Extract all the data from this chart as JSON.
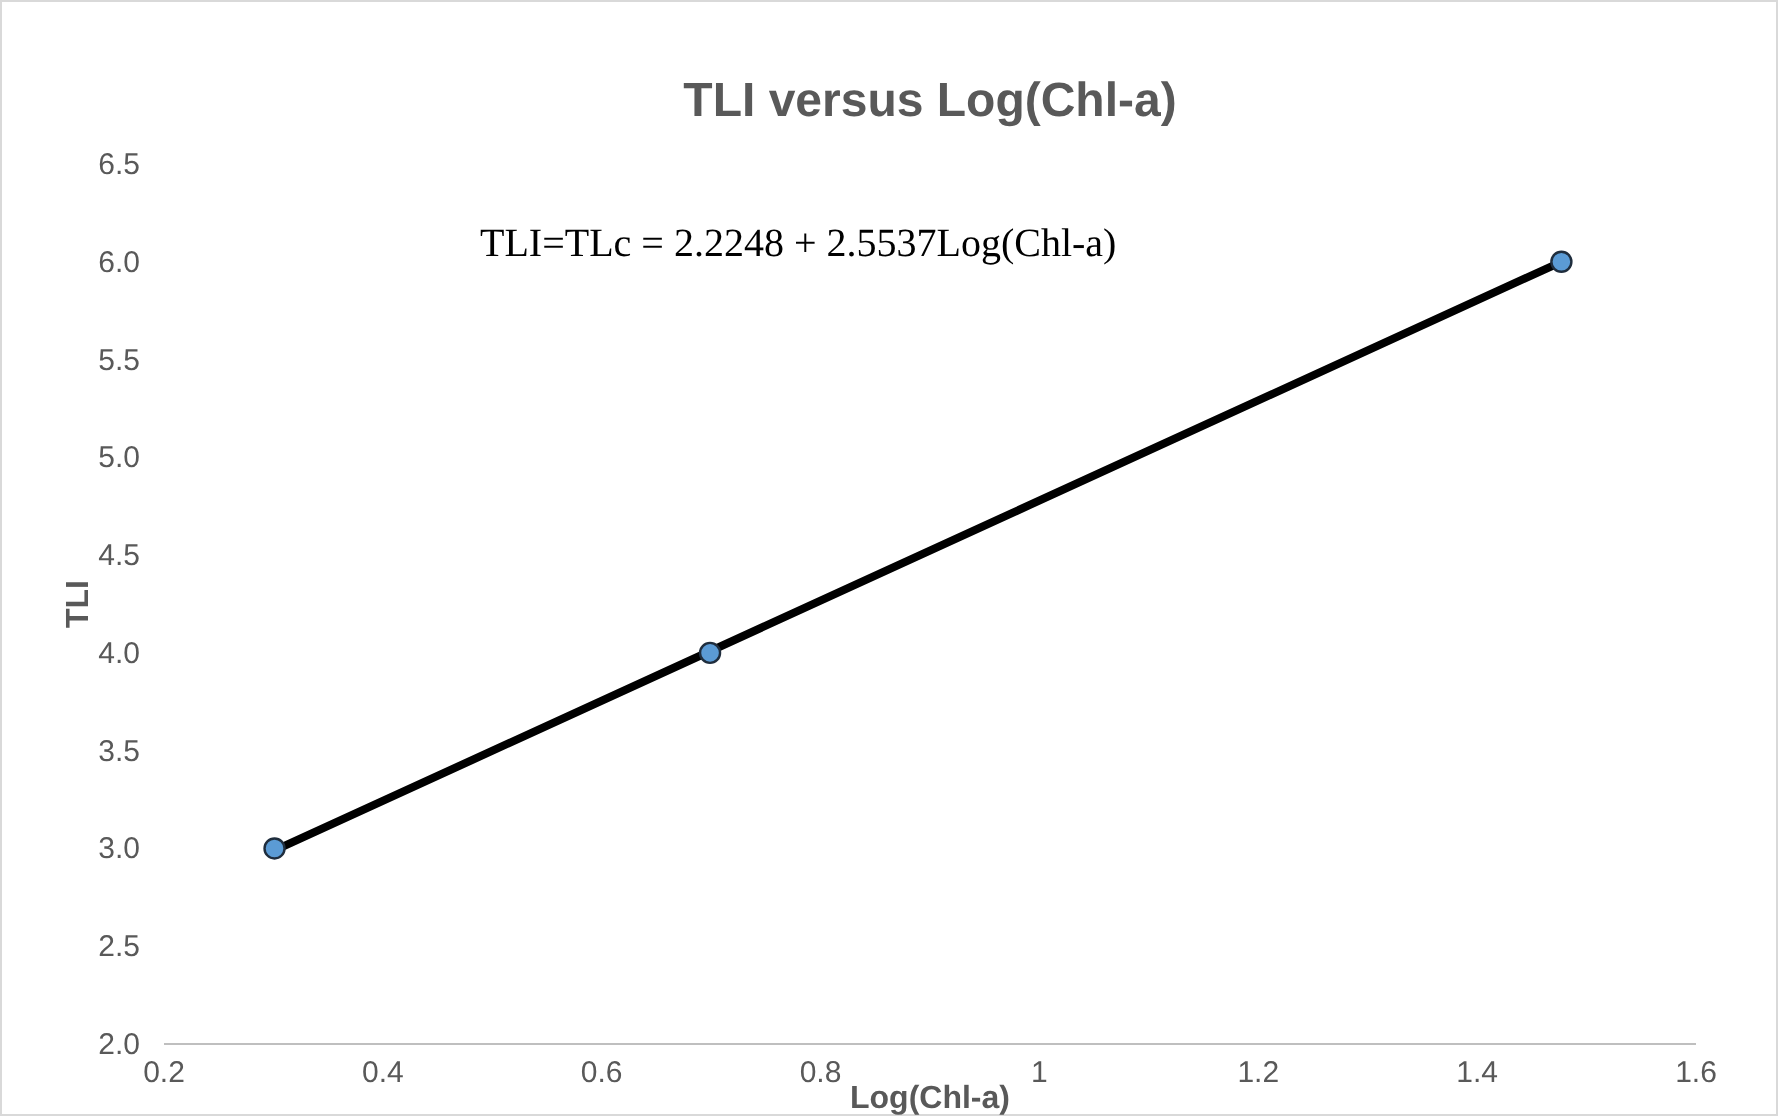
{
  "chart_data": {
    "type": "scatter",
    "title": "TLI versus Log(Chl-a)",
    "xlabel": "Log(Chl-a)",
    "ylabel": "TLI",
    "annotations": [
      "TLI=TLc = 2.2248 + 2.5537Log(Chl-a)"
    ],
    "xlim": [
      0.2,
      1.6
    ],
    "xticks": [
      0.2,
      0.4,
      0.6,
      0.8,
      1,
      1.2,
      1.4,
      1.6
    ],
    "ylim": [
      2.0,
      6.5
    ],
    "yticks": [
      {
        "value": 2,
        "label": "2.0"
      },
      {
        "value": 2.5,
        "label": "2.5"
      },
      {
        "value": 3,
        "label": "3.0"
      },
      {
        "value": 3.5,
        "label": "3.5"
      },
      {
        "value": 4,
        "label": "4.0"
      },
      {
        "value": 4.5,
        "label": "4.5"
      },
      {
        "value": 5,
        "label": "5.0"
      },
      {
        "value": 5.5,
        "label": "5.5"
      },
      {
        "value": 6,
        "label": "6.0"
      },
      {
        "value": 6.5,
        "label": "6.5"
      }
    ],
    "grid": false,
    "series": [
      {
        "type": "line",
        "color": "#000000",
        "x": [
          0.301,
          1.477
        ],
        "values": [
          2.99,
          6.0
        ],
        "marker": "none"
      },
      {
        "type": "scatter",
        "color": "#5b9bd5",
        "x": [
          0.301,
          0.699,
          1.477
        ],
        "values": [
          3.0,
          4.0,
          6.0
        ],
        "marker": "circle"
      }
    ]
  }
}
